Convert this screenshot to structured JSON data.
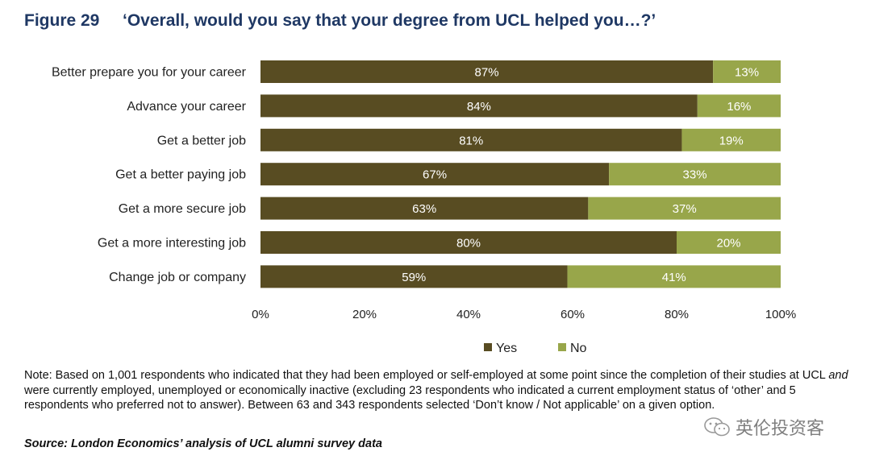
{
  "figure": {
    "number": "Figure 29",
    "title": "‘Overall, would you say that your degree from UCL helped you…?’"
  },
  "chart_data": {
    "type": "bar",
    "orientation": "horizontal",
    "stacked": true,
    "categories": [
      "Better prepare you for your career",
      "Advance your career",
      "Get a better job",
      "Get a better paying job",
      "Get a more secure job",
      "Get a more interesting job",
      "Change job or company"
    ],
    "series": [
      {
        "name": "Yes",
        "values": [
          87,
          84,
          81,
          67,
          63,
          80,
          59
        ],
        "color": "#584c22"
      },
      {
        "name": "No",
        "values": [
          13,
          16,
          19,
          33,
          37,
          20,
          41
        ],
        "color": "#98a64a"
      }
    ],
    "value_suffix": "%",
    "xlim": [
      0,
      100
    ],
    "x_ticks": [
      "0%",
      "20%",
      "40%",
      "60%",
      "80%",
      "100%"
    ],
    "grid": false,
    "legend": "bottom"
  },
  "note": {
    "prefix": "Note: Based on 1,001 respondents who indicated that they had been employed or self-employed at some point since the completion of their studies at UCL ",
    "emphasis": "and",
    "suffix": " were currently employed, unemployed or economically inactive (excluding 23 respondents who indicated a current employment status of ‘other’ and 5 respondents who preferred not to answer). Between 63 and 343 respondents selected ‘Don’t know / Not applicable’ on a given option."
  },
  "source": "Source: London Economics’ analysis of UCL alumni survey data",
  "watermark": {
    "text": "英伦投资客",
    "icon": "wechat-icon"
  }
}
